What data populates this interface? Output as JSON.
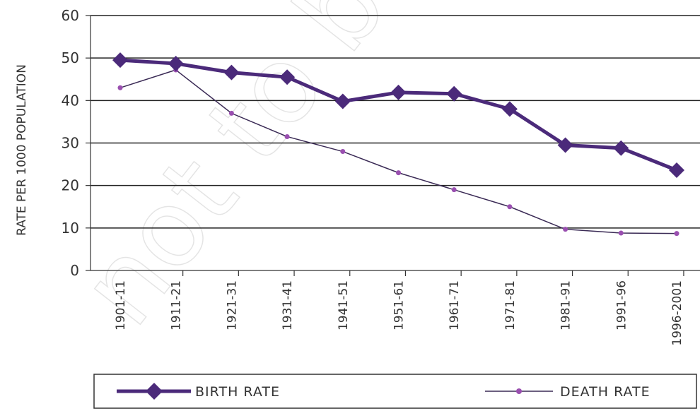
{
  "chart_data": {
    "type": "line",
    "categories": [
      "1901-11",
      "1911-21",
      "1921-31",
      "1931-41",
      "1941-51",
      "1951-61",
      "1961-71",
      "1971-81",
      "1981-91",
      "1991-96",
      "1996-2001"
    ],
    "series": [
      {
        "name": "BIRTH RATE",
        "values": [
          49.5,
          48.7,
          46.6,
          45.5,
          39.8,
          41.9,
          41.6,
          38.0,
          29.5,
          28.8,
          23.6
        ],
        "color": "#4b2a7a"
      },
      {
        "name": "DEATH RATE",
        "values": [
          43.0,
          47.2,
          37.0,
          31.5,
          28.0,
          23.0,
          19.0,
          15.0,
          9.7,
          8.8,
          8.7
        ],
        "color": "#9a4fb0"
      }
    ],
    "title": "",
    "xlabel": "",
    "ylabel": "RATE PER 1000 POPULATION",
    "ylim": [
      0,
      60
    ],
    "yticks": [
      0,
      10,
      20,
      30,
      40,
      50,
      60
    ],
    "grid": true,
    "legend": "bottom"
  },
  "watermark": "not to be re"
}
